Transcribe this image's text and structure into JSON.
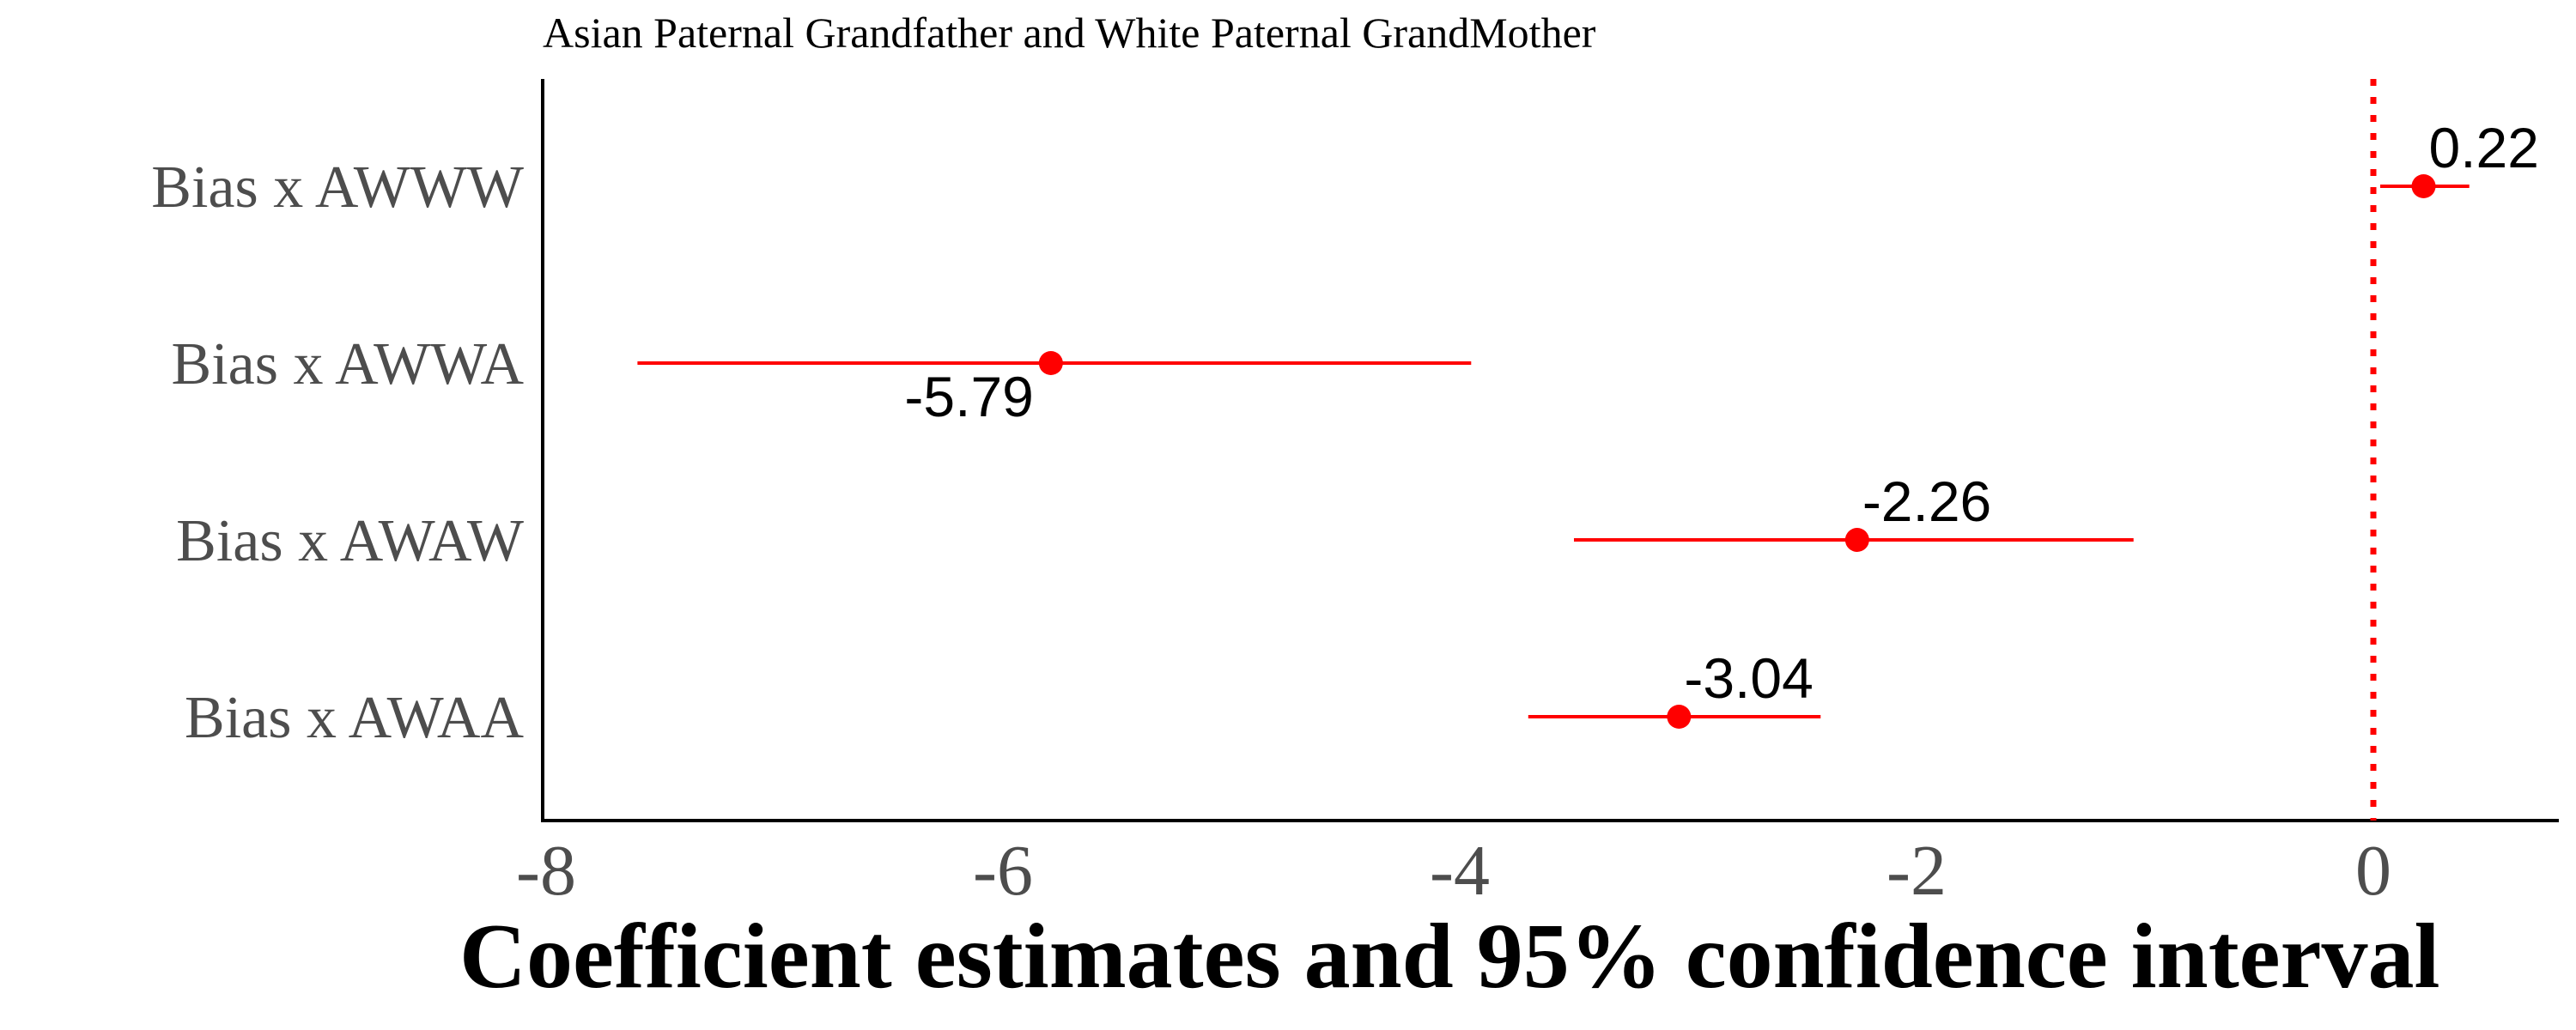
{
  "chart_data": {
    "type": "forest",
    "title": "Asian Paternal Grandfather and White Paternal GrandMother",
    "xlabel": "Coefficient estimates and 95% confidence interval",
    "ylabel": "",
    "xlim": [
      -8,
      0.8
    ],
    "x_ticks": [
      -8,
      -6,
      -4,
      -2,
      0
    ],
    "reference_line": 0,
    "reference_line_style": "dotted",
    "grid": false,
    "color": "#ff0000",
    "categories": [
      "Bias x AWWW",
      "Bias x AWWA",
      "Bias x AWAW",
      "Bias x AWAA"
    ],
    "estimates": [
      0.22,
      -5.79,
      -2.26,
      -3.04
    ],
    "ci_lower": [
      0.03,
      -7.6,
      -3.5,
      -3.7
    ],
    "ci_upper": [
      0.42,
      -3.95,
      -1.05,
      -2.42
    ],
    "estimate_labels": [
      "0.22",
      "-5.79",
      "-2.26",
      "-3.04"
    ],
    "label_positions": [
      "above-right",
      "below-left",
      "above-right",
      "above-right"
    ]
  }
}
